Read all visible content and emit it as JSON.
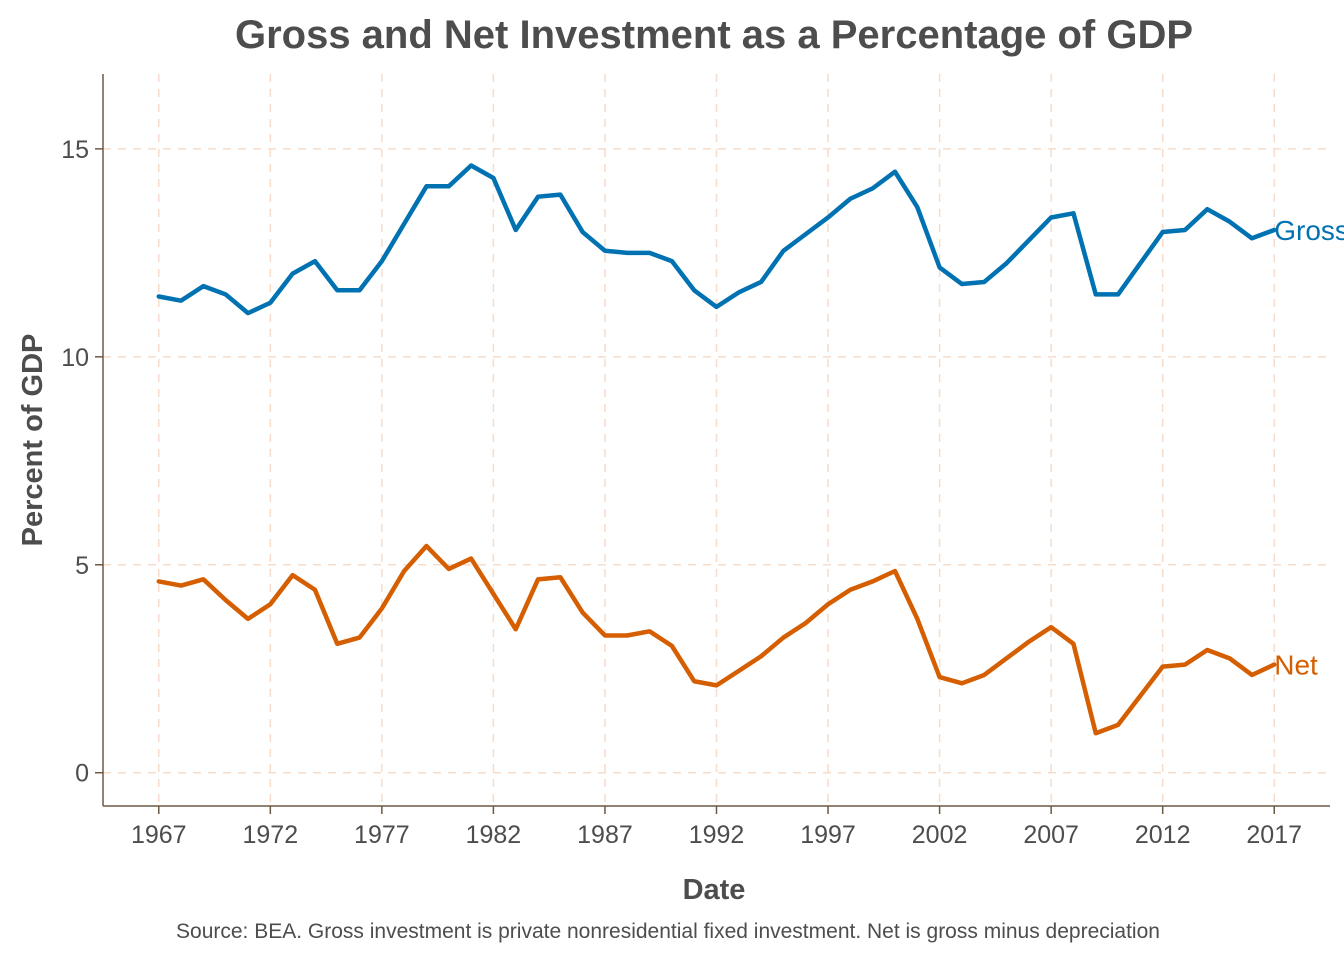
{
  "chart_data": {
    "type": "line",
    "title": "Gross and Net Investment as a Percentage of GDP",
    "xlabel": "Date",
    "ylabel": "Percent of GDP",
    "caption": "Source: BEA. Gross investment is private nonresidential fixed investment. Net is gross minus depreciation",
    "x_ticks": [
      "1967",
      "1972",
      "1977",
      "1982",
      "1987",
      "1992",
      "1997",
      "2002",
      "2007",
      "2012",
      "2017"
    ],
    "y_ticks": [
      "0",
      "5",
      "10",
      "15"
    ],
    "xlim": [
      1964.5,
      1969.5
    ],
    "ylim": [
      -0.8,
      16.8
    ],
    "grid": true,
    "x": [
      1967,
      1968,
      1969,
      1970,
      1971,
      1972,
      1973,
      1974,
      1975,
      1976,
      1977,
      1978,
      1979,
      1980,
      1981,
      1982,
      1983,
      1984,
      1985,
      1986,
      1987,
      1988,
      1989,
      1990,
      1991,
      1992,
      1993,
      1994,
      1995,
      1996,
      1997,
      1998,
      1999,
      2000,
      2001,
      2002,
      2003,
      2004,
      2005,
      2006,
      2007,
      2008,
      2009,
      2010,
      2011,
      2012,
      2013,
      2014,
      2015,
      2016,
      2017
    ],
    "series": [
      {
        "name": "Gross",
        "label": "Gross",
        "color": "#0072b2",
        "values": [
          11.45,
          11.35,
          11.7,
          11.5,
          11.05,
          11.3,
          12.0,
          12.3,
          11.6,
          11.6,
          12.3,
          13.2,
          14.1,
          14.1,
          14.6,
          14.3,
          13.05,
          13.85,
          13.9,
          13.0,
          12.55,
          12.5,
          12.5,
          12.3,
          11.6,
          11.2,
          11.55,
          11.8,
          12.55,
          12.95,
          13.35,
          13.8,
          14.05,
          14.45,
          13.6,
          12.15,
          11.75,
          11.8,
          12.25,
          12.8,
          13.35,
          13.45,
          11.5,
          11.5,
          12.25,
          13.0,
          13.05,
          13.55,
          13.25,
          12.85,
          13.05
        ]
      },
      {
        "name": "Net",
        "label": "Net",
        "color": "#d55e00",
        "values": [
          4.6,
          4.5,
          4.65,
          4.15,
          3.7,
          4.05,
          4.75,
          4.4,
          3.1,
          3.25,
          3.95,
          4.85,
          5.45,
          4.9,
          5.15,
          4.3,
          3.45,
          4.65,
          4.7,
          3.85,
          3.3,
          3.3,
          3.4,
          3.05,
          2.2,
          2.1,
          2.45,
          2.8,
          3.25,
          3.6,
          4.05,
          4.4,
          4.6,
          4.85,
          3.7,
          2.3,
          2.15,
          2.35,
          2.75,
          3.15,
          3.5,
          3.1,
          0.95,
          1.15,
          1.85,
          2.55,
          2.6,
          2.95,
          2.75,
          2.35,
          2.6
        ]
      }
    ]
  }
}
